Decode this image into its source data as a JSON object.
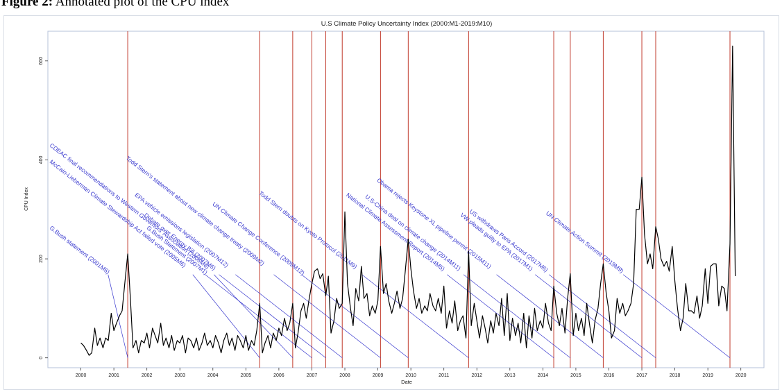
{
  "figure": {
    "caption_label": "Figure 2:",
    "caption_text": " Annotated plot of the CPU index"
  },
  "colors": {
    "series_line": "#000000",
    "event_line": "#c0392b",
    "annotation_line": "#3a3acf",
    "annotation_text": "#3a3acf",
    "frame": "#b5c2d8",
    "background": "#ffffff"
  },
  "chart_data": {
    "type": "line",
    "title": "U.S Climate Policy Uncertainty Index (2000:M1-2019:M10)",
    "xlabel": "Date",
    "ylabel": "CPU Index",
    "xlim": [
      1999.0,
      2020.7
    ],
    "ylim": [
      -20,
      660
    ],
    "x_ticks": [
      2000,
      2001,
      2002,
      2003,
      2004,
      2005,
      2006,
      2007,
      2008,
      2009,
      2010,
      2011,
      2012,
      2013,
      2014,
      2015,
      2016,
      2017,
      2018,
      2019,
      2020
    ],
    "y_ticks": [
      0,
      200,
      400,
      600
    ],
    "grid": false,
    "series": [
      {
        "name": "CPU Index",
        "points": [
          [
            2000.0,
            30
          ],
          [
            2000.08,
            25
          ],
          [
            2000.17,
            15
          ],
          [
            2000.25,
            5
          ],
          [
            2000.33,
            10
          ],
          [
            2000.42,
            60
          ],
          [
            2000.5,
            25
          ],
          [
            2000.58,
            40
          ],
          [
            2000.67,
            20
          ],
          [
            2000.75,
            40
          ],
          [
            2000.83,
            35
          ],
          [
            2000.92,
            90
          ],
          [
            2001.0,
            55
          ],
          [
            2001.08,
            70
          ],
          [
            2001.17,
            85
          ],
          [
            2001.25,
            95
          ],
          [
            2001.33,
            150
          ],
          [
            2001.42,
            210
          ],
          [
            2001.5,
            120
          ],
          [
            2001.58,
            20
          ],
          [
            2001.67,
            35
          ],
          [
            2001.75,
            10
          ],
          [
            2001.83,
            35
          ],
          [
            2001.92,
            30
          ],
          [
            2002.0,
            50
          ],
          [
            2002.08,
            20
          ],
          [
            2002.17,
            60
          ],
          [
            2002.25,
            45
          ],
          [
            2002.33,
            30
          ],
          [
            2002.42,
            70
          ],
          [
            2002.5,
            25
          ],
          [
            2002.58,
            40
          ],
          [
            2002.67,
            20
          ],
          [
            2002.75,
            45
          ],
          [
            2002.83,
            15
          ],
          [
            2002.92,
            35
          ],
          [
            2003.0,
            30
          ],
          [
            2003.08,
            45
          ],
          [
            2003.17,
            10
          ],
          [
            2003.25,
            40
          ],
          [
            2003.33,
            35
          ],
          [
            2003.42,
            20
          ],
          [
            2003.5,
            40
          ],
          [
            2003.58,
            15
          ],
          [
            2003.67,
            30
          ],
          [
            2003.75,
            50
          ],
          [
            2003.83,
            25
          ],
          [
            2003.92,
            35
          ],
          [
            2004.0,
            20
          ],
          [
            2004.08,
            45
          ],
          [
            2004.17,
            30
          ],
          [
            2004.25,
            10
          ],
          [
            2004.33,
            35
          ],
          [
            2004.42,
            50
          ],
          [
            2004.5,
            25
          ],
          [
            2004.58,
            40
          ],
          [
            2004.67,
            15
          ],
          [
            2004.75,
            45
          ],
          [
            2004.83,
            35
          ],
          [
            2004.92,
            20
          ],
          [
            2005.0,
            45
          ],
          [
            2005.08,
            15
          ],
          [
            2005.17,
            35
          ],
          [
            2005.25,
            25
          ],
          [
            2005.33,
            55
          ],
          [
            2005.42,
            110
          ],
          [
            2005.5,
            10
          ],
          [
            2005.58,
            30
          ],
          [
            2005.67,
            45
          ],
          [
            2005.75,
            20
          ],
          [
            2005.83,
            50
          ],
          [
            2005.92,
            35
          ],
          [
            2006.0,
            60
          ],
          [
            2006.08,
            45
          ],
          [
            2006.17,
            80
          ],
          [
            2006.25,
            55
          ],
          [
            2006.33,
            70
          ],
          [
            2006.42,
            110
          ],
          [
            2006.5,
            20
          ],
          [
            2006.58,
            50
          ],
          [
            2006.67,
            95
          ],
          [
            2006.75,
            110
          ],
          [
            2006.83,
            80
          ],
          [
            2006.92,
            120
          ],
          [
            2007.0,
            150
          ],
          [
            2007.08,
            175
          ],
          [
            2007.17,
            180
          ],
          [
            2007.25,
            160
          ],
          [
            2007.33,
            170
          ],
          [
            2007.42,
            125
          ],
          [
            2007.5,
            165
          ],
          [
            2007.58,
            50
          ],
          [
            2007.67,
            75
          ],
          [
            2007.75,
            120
          ],
          [
            2007.83,
            100
          ],
          [
            2007.92,
            110
          ],
          [
            2008.0,
            295
          ],
          [
            2008.08,
            150
          ],
          [
            2008.17,
            100
          ],
          [
            2008.25,
            65
          ],
          [
            2008.33,
            140
          ],
          [
            2008.42,
            115
          ],
          [
            2008.5,
            185
          ],
          [
            2008.58,
            120
          ],
          [
            2008.67,
            130
          ],
          [
            2008.75,
            85
          ],
          [
            2008.83,
            105
          ],
          [
            2008.92,
            90
          ],
          [
            2009.0,
            115
          ],
          [
            2009.08,
            225
          ],
          [
            2009.17,
            130
          ],
          [
            2009.25,
            150
          ],
          [
            2009.33,
            115
          ],
          [
            2009.42,
            90
          ],
          [
            2009.5,
            110
          ],
          [
            2009.58,
            135
          ],
          [
            2009.67,
            100
          ],
          [
            2009.75,
            120
          ],
          [
            2009.83,
            175
          ],
          [
            2009.92,
            240
          ],
          [
            2010.0,
            180
          ],
          [
            2010.08,
            135
          ],
          [
            2010.17,
            100
          ],
          [
            2010.25,
            120
          ],
          [
            2010.33,
            90
          ],
          [
            2010.42,
            105
          ],
          [
            2010.5,
            95
          ],
          [
            2010.58,
            130
          ],
          [
            2010.67,
            105
          ],
          [
            2010.75,
            95
          ],
          [
            2010.83,
            120
          ],
          [
            2010.92,
            90
          ],
          [
            2011.0,
            145
          ],
          [
            2011.08,
            60
          ],
          [
            2011.17,
            95
          ],
          [
            2011.25,
            70
          ],
          [
            2011.33,
            115
          ],
          [
            2011.42,
            55
          ],
          [
            2011.5,
            75
          ],
          [
            2011.58,
            85
          ],
          [
            2011.67,
            40
          ],
          [
            2011.75,
            215
          ],
          [
            2011.83,
            65
          ],
          [
            2011.92,
            110
          ],
          [
            2012.0,
            75
          ],
          [
            2012.08,
            40
          ],
          [
            2012.17,
            85
          ],
          [
            2012.25,
            60
          ],
          [
            2012.33,
            30
          ],
          [
            2012.42,
            75
          ],
          [
            2012.5,
            50
          ],
          [
            2012.58,
            90
          ],
          [
            2012.67,
            65
          ],
          [
            2012.75,
            120
          ],
          [
            2012.83,
            45
          ],
          [
            2012.92,
            130
          ],
          [
            2013.0,
            35
          ],
          [
            2013.08,
            80
          ],
          [
            2013.17,
            45
          ],
          [
            2013.25,
            70
          ],
          [
            2013.33,
            30
          ],
          [
            2013.42,
            90
          ],
          [
            2013.5,
            20
          ],
          [
            2013.58,
            85
          ],
          [
            2013.67,
            40
          ],
          [
            2013.75,
            100
          ],
          [
            2013.83,
            55
          ],
          [
            2013.92,
            75
          ],
          [
            2014.0,
            60
          ],
          [
            2014.08,
            110
          ],
          [
            2014.17,
            70
          ],
          [
            2014.25,
            55
          ],
          [
            2014.33,
            145
          ],
          [
            2014.42,
            90
          ],
          [
            2014.5,
            65
          ],
          [
            2014.58,
            100
          ],
          [
            2014.67,
            50
          ],
          [
            2014.75,
            120
          ],
          [
            2014.83,
            170
          ],
          [
            2014.92,
            45
          ],
          [
            2015.0,
            90
          ],
          [
            2015.08,
            55
          ],
          [
            2015.17,
            80
          ],
          [
            2015.25,
            45
          ],
          [
            2015.33,
            110
          ],
          [
            2015.42,
            65
          ],
          [
            2015.5,
            30
          ],
          [
            2015.58,
            75
          ],
          [
            2015.67,
            100
          ],
          [
            2015.75,
            150
          ],
          [
            2015.83,
            190
          ],
          [
            2015.92,
            130
          ],
          [
            2016.0,
            95
          ],
          [
            2016.08,
            40
          ],
          [
            2016.17,
            55
          ],
          [
            2016.25,
            120
          ],
          [
            2016.33,
            90
          ],
          [
            2016.42,
            110
          ],
          [
            2016.5,
            85
          ],
          [
            2016.58,
            95
          ],
          [
            2016.67,
            110
          ],
          [
            2016.75,
            150
          ],
          [
            2016.83,
            300
          ],
          [
            2016.92,
            300
          ],
          [
            2017.0,
            365
          ],
          [
            2017.08,
            250
          ],
          [
            2017.17,
            190
          ],
          [
            2017.25,
            210
          ],
          [
            2017.33,
            180
          ],
          [
            2017.42,
            265
          ],
          [
            2017.5,
            240
          ],
          [
            2017.58,
            200
          ],
          [
            2017.67,
            185
          ],
          [
            2017.75,
            195
          ],
          [
            2017.83,
            175
          ],
          [
            2017.92,
            225
          ],
          [
            2018.0,
            155
          ],
          [
            2018.08,
            100
          ],
          [
            2018.17,
            55
          ],
          [
            2018.25,
            80
          ],
          [
            2018.33,
            150
          ],
          [
            2018.42,
            95
          ],
          [
            2018.5,
            95
          ],
          [
            2018.58,
            90
          ],
          [
            2018.67,
            125
          ],
          [
            2018.75,
            80
          ],
          [
            2018.83,
            105
          ],
          [
            2018.92,
            180
          ],
          [
            2019.0,
            110
          ],
          [
            2019.08,
            185
          ],
          [
            2019.17,
            190
          ],
          [
            2019.25,
            190
          ],
          [
            2019.33,
            105
          ],
          [
            2019.42,
            145
          ],
          [
            2019.5,
            140
          ],
          [
            2019.58,
            95
          ],
          [
            2019.67,
            230
          ],
          [
            2019.75,
            630
          ],
          [
            2019.83,
            165
          ]
        ]
      }
    ],
    "events": [
      {
        "date": 2001.42,
        "label": "G.Bush statement (2001M6)"
      },
      {
        "date": 2005.42,
        "label": "McCain-Lieberman Climate Stewardship Act failed vote (2005M6)"
      },
      {
        "date": 2006.42,
        "label": "CDEAC final recommendations to Western Governors' Association (2006M6)"
      },
      {
        "date": 2007.0,
        "label": "G.Bush Statement (2007M1)"
      },
      {
        "date": 2007.42,
        "label": "Debate over Energy Bill (2007M6)"
      },
      {
        "date": 2007.92,
        "label": "EPA vehicle emissions legislation (2007M12)"
      },
      {
        "date": 2009.08,
        "label": "Todd Stern's statement about new climate change treaty (2009M2)"
      },
      {
        "date": 2009.92,
        "label": "UN Climate Change Conference (2009M12)"
      },
      {
        "date": 2011.75,
        "label": "Todd Stern doubts on Kyoto Protocol (2011M9)"
      },
      {
        "date": 2014.33,
        "label": "National Climate Assessment Report (2014M5)"
      },
      {
        "date": 2014.83,
        "label": "U.S-China deal on climate change (2014M11)"
      },
      {
        "date": 2015.83,
        "label": "Obama rejects Keystone XL pipeline permit (2015M11)"
      },
      {
        "date": 2017.0,
        "label": "VW pleads guilty to EPA (2017M1)"
      },
      {
        "date": 2017.42,
        "label": "US withdraws Paris Accord (2017M6)"
      },
      {
        "date": 2019.67,
        "label": "UN Climate Action Summit (2019M9)"
      }
    ]
  }
}
